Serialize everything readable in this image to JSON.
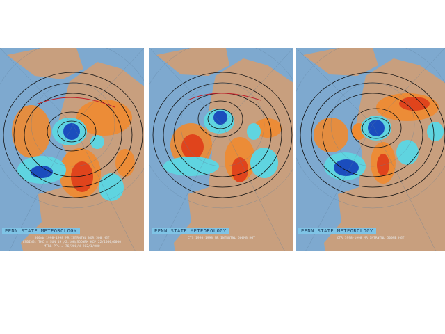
{
  "panels": [
    {
      "banner": "PENN STATE METEOROLOGY",
      "captions": [
        "500mb 1998-1998 MR INTRNTNL NOR 500 HGT",
        "ENDING: THC = SUN 19 /2.10H/SOONRK HCP 22/1000/0000",
        "MTRL PPL = 76/200/W 202/1/080"
      ]
    },
    {
      "banner": "PENN STATE METEOROLOGY",
      "captions": [
        "CTS 1998-1998 MR INTRNTNL 500MB HGT"
      ]
    },
    {
      "banner": "PENN STATE METEOROLOGY",
      "captions": [
        "CTR 1998-1998 MR INTRNTNL 500MB HGT"
      ]
    }
  ],
  "colors": {
    "ocean": "#7ea9cf",
    "land": "#c89f7e",
    "positive_anomaly": "#f08a30",
    "positive_anomaly_core": "#e0441c",
    "negative_anomaly": "#5fd4e0",
    "negative_anomaly_core": "#1b4dbd",
    "banner": "#7fc4e6"
  }
}
